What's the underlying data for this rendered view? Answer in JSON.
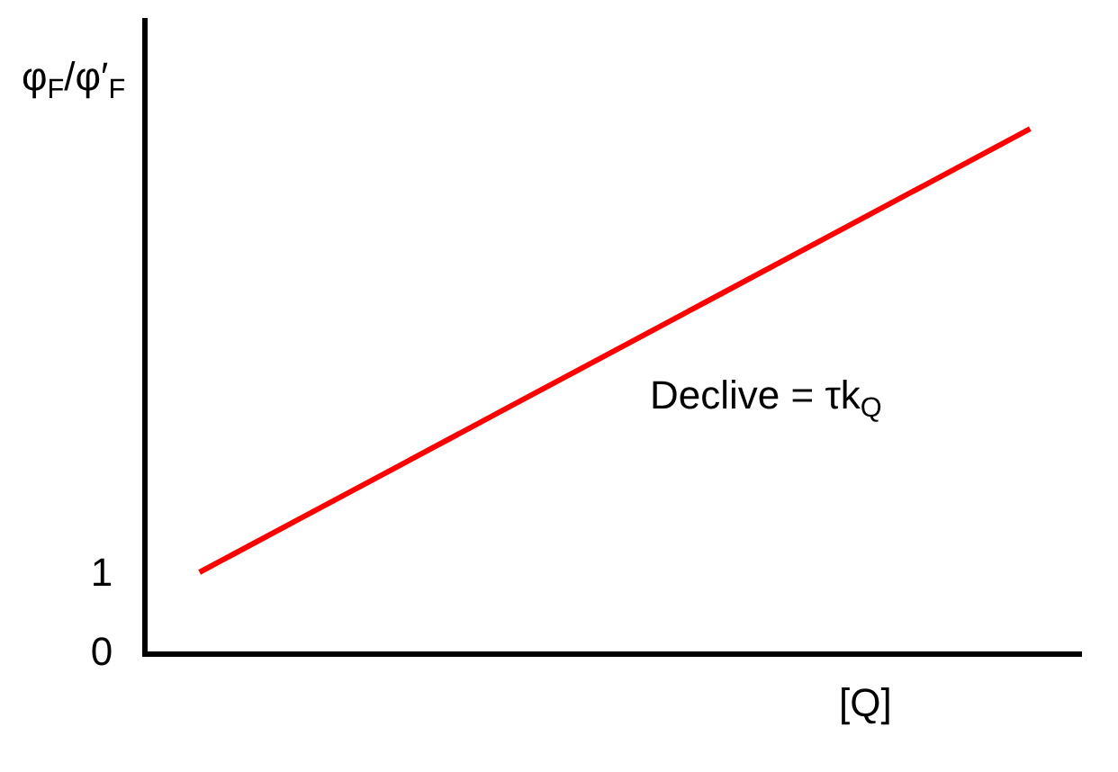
{
  "chart_data": {
    "type": "line",
    "ylabel": "φ$_{F}$/φ′$_{F}$",
    "xlabel": "[Q]",
    "categories": [
      null,
      null,
      null,
      null,
      null,
      null,
      null,
      null,
      null
    ],
    "series": [
      {
        "color": "#ff0000",
        "values": [
          1,
          1.7,
          2.4,
          3.1,
          3.8,
          4.5,
          5.2,
          5.9,
          6.6
        ]
      }
    ],
    "ylim": [
      0,
      8
    ],
    "yticks": [
      0,
      1
    ],
    "tick_labels": "y",
    "legend": false,
    "annotations": [
      "Declive = τk$_{Q}$"
    ]
  }
}
